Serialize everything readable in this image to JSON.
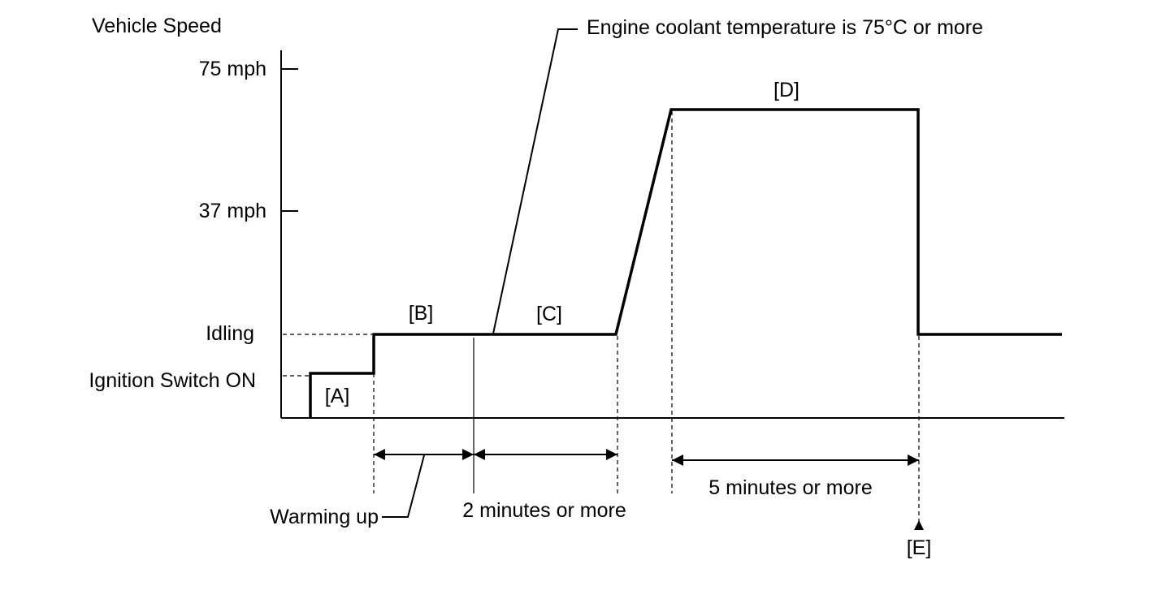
{
  "diagram": {
    "y_axis_title": "Vehicle Speed",
    "y_labels": {
      "speed_high": "75 mph",
      "speed_mid": "37 mph",
      "idling": "Idling",
      "ignition_on": "Ignition Switch ON"
    },
    "phases": {
      "a": "[A]",
      "b": "[B]",
      "c": "[C]",
      "d": "[D]",
      "e": "[E]"
    },
    "callouts": {
      "coolant": "Engine coolant temperature is 75°C or more",
      "warming_up": "Warming up"
    },
    "durations": {
      "c_duration": "2 minutes or more",
      "d_duration": "5 minutes or more"
    },
    "colors": {
      "ink": "#000000",
      "background": "#ffffff"
    }
  }
}
